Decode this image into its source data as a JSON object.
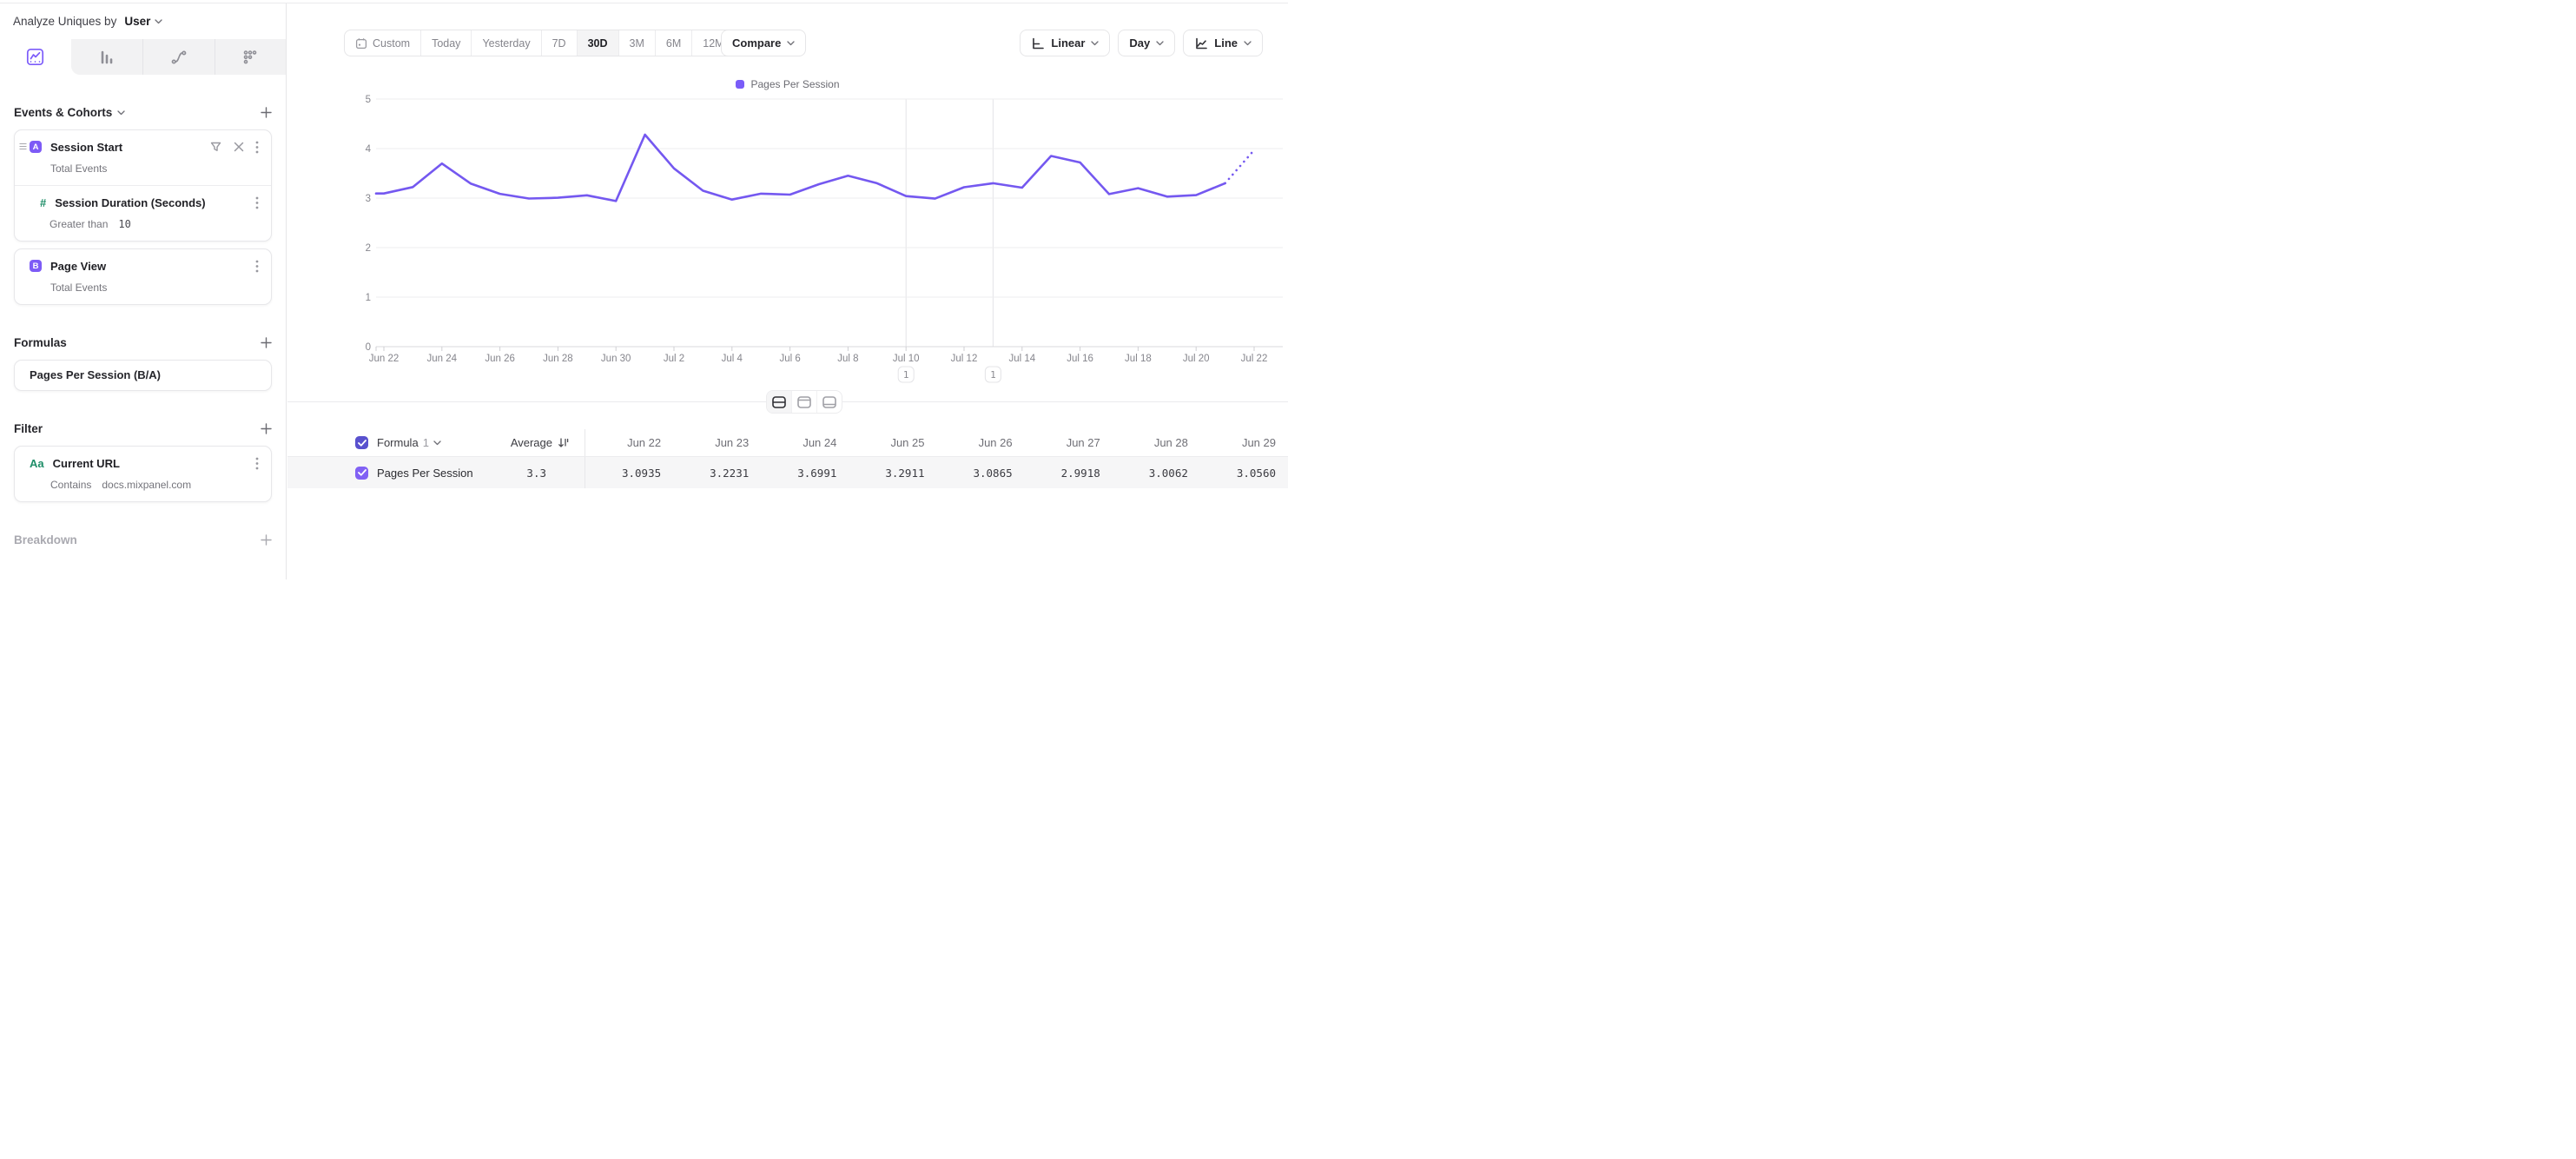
{
  "sidebar": {
    "analyze_label": "Analyze Uniques by",
    "analyze_value": "User",
    "chart_type_tabs": [
      "line-chart",
      "bar-chart",
      "flow-chart",
      "dot-grid"
    ],
    "events_section": {
      "title": "Events & Cohorts",
      "items": [
        {
          "letter": "A",
          "name": "Session Start",
          "subtitle": "Total Events",
          "property": {
            "icon": "number",
            "name": "Session Duration (Seconds)",
            "operator": "Greater than",
            "value": "10"
          }
        },
        {
          "letter": "B",
          "name": "Page View",
          "subtitle": "Total Events"
        }
      ]
    },
    "formulas_section": {
      "title": "Formulas",
      "items": [
        {
          "name": "Pages Per Session (B/A)"
        }
      ]
    },
    "filter_section": {
      "title": "Filter",
      "items": [
        {
          "icon": "Aa",
          "name": "Current URL",
          "operator": "Contains",
          "value": "docs.mixpanel.com"
        }
      ]
    },
    "breakdown_section": {
      "title": "Breakdown"
    }
  },
  "toolbar": {
    "ranges": [
      "Custom",
      "Today",
      "Yesterday",
      "7D",
      "30D",
      "3M",
      "6M",
      "12M"
    ],
    "selected_range": "30D",
    "compare_label": "Compare",
    "scale_label": "Linear",
    "granularity_label": "Day",
    "chart_type_label": "Line"
  },
  "legend": {
    "label": "Pages Per Session",
    "color": "#7a5cf8"
  },
  "chart_data": {
    "type": "line",
    "title": "",
    "xlabel": "",
    "ylabel": "",
    "ylim": [
      0,
      5
    ],
    "yticks": [
      0,
      1,
      2,
      3,
      4,
      5
    ],
    "x_label_every": 2,
    "grid": "horizontal",
    "legend_position": "top-center",
    "categories": [
      "Jun 22",
      "Jun 23",
      "Jun 24",
      "Jun 25",
      "Jun 26",
      "Jun 27",
      "Jun 28",
      "Jun 29",
      "Jun 30",
      "Jul 1",
      "Jul 2",
      "Jul 3",
      "Jul 4",
      "Jul 5",
      "Jul 6",
      "Jul 7",
      "Jul 8",
      "Jul 9",
      "Jul 10",
      "Jul 11",
      "Jul 12",
      "Jul 13",
      "Jul 14",
      "Jul 15",
      "Jul 16",
      "Jul 17",
      "Jul 18",
      "Jul 19",
      "Jul 20",
      "Jul 21",
      "Jul 22"
    ],
    "series": [
      {
        "name": "Pages Per Session",
        "color": "#7458f0",
        "last_segment_dashed": true,
        "values": [
          3.0935,
          3.2231,
          3.6991,
          3.2911,
          3.0865,
          2.9918,
          3.0062,
          3.056,
          2.94,
          4.28,
          3.6,
          3.15,
          2.97,
          3.09,
          3.07,
          3.28,
          3.45,
          3.3,
          3.04,
          2.99,
          3.22,
          3.3,
          3.21,
          3.85,
          3.72,
          3.08,
          3.2,
          3.03,
          3.06,
          3.3,
          3.97
        ]
      }
    ],
    "annotations": [
      {
        "category": "Jul 10",
        "count": "1"
      },
      {
        "category": "Jul 13",
        "count": "1"
      }
    ]
  },
  "table": {
    "group_label": "Formula",
    "group_number": "1",
    "average_label": "Average",
    "date_columns": [
      "Jun 22",
      "Jun 23",
      "Jun 24",
      "Jun 25",
      "Jun 26",
      "Jun 27",
      "Jun 28",
      "Jun 29"
    ],
    "rows": [
      {
        "name": "Pages Per Session",
        "average": "3.3",
        "values": [
          "3.0935",
          "3.2231",
          "3.6991",
          "3.2911",
          "3.0865",
          "2.9918",
          "3.0062",
          "3.0560"
        ]
      }
    ]
  }
}
